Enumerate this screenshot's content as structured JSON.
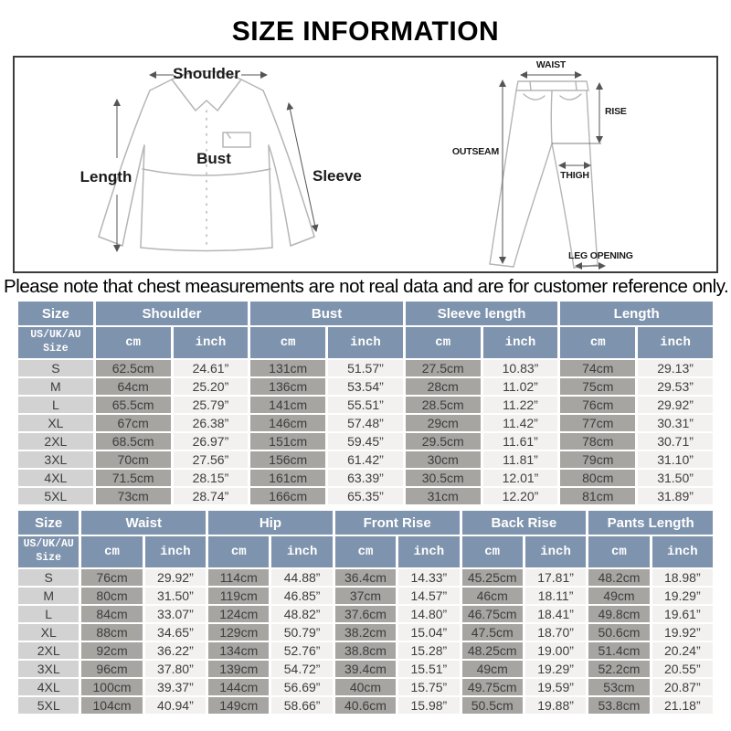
{
  "title": "SIZE INFORMATION",
  "note": {
    "text": "Please note that chest measurements are not real data and are for customer reference only."
  },
  "diagram": {
    "shirt": {
      "shoulder": "Shoulder",
      "length": "Length",
      "bust": "Bust",
      "sleeve": "Sleeve"
    },
    "pants": {
      "waist": "WAIST",
      "rise": "RISE",
      "outseam": "OUTSEAM",
      "thigh": "THIGH",
      "leg_opening": "LEG OPENING"
    }
  },
  "colors": {
    "header": "#7e93ad",
    "size_col": "#d2d2d2",
    "cm_col": "#a7a5a2",
    "inch_col": "#f2f1ef"
  },
  "tables": [
    {
      "name": "tops-size-table",
      "corner": "Size",
      "sub_corner": "US/UK/AU\nSize",
      "groups": [
        "Shoulder",
        "Bust",
        "Sleeve length",
        "Length"
      ],
      "units": [
        "cm",
        "inch"
      ],
      "rows": [
        {
          "size": "S",
          "values": [
            "62.5cm",
            "24.61”",
            "131cm",
            "51.57”",
            "27.5cm",
            "10.83”",
            "74cm",
            "29.13”"
          ]
        },
        {
          "size": "M",
          "values": [
            "64cm",
            "25.20”",
            "136cm",
            "53.54”",
            "28cm",
            "11.02”",
            "75cm",
            "29.53”"
          ]
        },
        {
          "size": "L",
          "values": [
            "65.5cm",
            "25.79”",
            "141cm",
            "55.51”",
            "28.5cm",
            "11.22”",
            "76cm",
            "29.92”"
          ]
        },
        {
          "size": "XL",
          "values": [
            "67cm",
            "26.38”",
            "146cm",
            "57.48”",
            "29cm",
            "11.42”",
            "77cm",
            "30.31”"
          ]
        },
        {
          "size": "2XL",
          "values": [
            "68.5cm",
            "26.97”",
            "151cm",
            "59.45”",
            "29.5cm",
            "11.61”",
            "78cm",
            "30.71”"
          ]
        },
        {
          "size": "3XL",
          "values": [
            "70cm",
            "27.56”",
            "156cm",
            "61.42”",
            "30cm",
            "11.81”",
            "79cm",
            "31.10”"
          ]
        },
        {
          "size": "4XL",
          "values": [
            "71.5cm",
            "28.15”",
            "161cm",
            "63.39”",
            "30.5cm",
            "12.01”",
            "80cm",
            "31.50”"
          ]
        },
        {
          "size": "5XL",
          "values": [
            "73cm",
            "28.74”",
            "166cm",
            "65.35”",
            "31cm",
            "12.20”",
            "81cm",
            "31.89”"
          ]
        }
      ]
    },
    {
      "name": "bottoms-size-table",
      "corner": "Size",
      "sub_corner": "US/UK/AU\nSize",
      "groups": [
        "Waist",
        "Hip",
        "Front Rise",
        "Back Rise",
        "Pants Length"
      ],
      "units": [
        "cm",
        "inch"
      ],
      "rows": [
        {
          "size": "S",
          "values": [
            "76cm",
            "29.92”",
            "114cm",
            "44.88”",
            "36.4cm",
            "14.33”",
            "45.25cm",
            "17.81”",
            "48.2cm",
            "18.98”"
          ]
        },
        {
          "size": "M",
          "values": [
            "80cm",
            "31.50”",
            "119cm",
            "46.85”",
            "37cm",
            "14.57”",
            "46cm",
            "18.11”",
            "49cm",
            "19.29”"
          ]
        },
        {
          "size": "L",
          "values": [
            "84cm",
            "33.07”",
            "124cm",
            "48.82”",
            "37.6cm",
            "14.80”",
            "46.75cm",
            "18.41”",
            "49.8cm",
            "19.61”"
          ]
        },
        {
          "size": "XL",
          "values": [
            "88cm",
            "34.65”",
            "129cm",
            "50.79”",
            "38.2cm",
            "15.04”",
            "47.5cm",
            "18.70”",
            "50.6cm",
            "19.92”"
          ]
        },
        {
          "size": "2XL",
          "values": [
            "92cm",
            "36.22”",
            "134cm",
            "52.76”",
            "38.8cm",
            "15.28”",
            "48.25cm",
            "19.00”",
            "51.4cm",
            "20.24”"
          ]
        },
        {
          "size": "3XL",
          "values": [
            "96cm",
            "37.80”",
            "139cm",
            "54.72”",
            "39.4cm",
            "15.51”",
            "49cm",
            "19.29”",
            "52.2cm",
            "20.55”"
          ]
        },
        {
          "size": "4XL",
          "values": [
            "100cm",
            "39.37”",
            "144cm",
            "56.69”",
            "40cm",
            "15.75”",
            "49.75cm",
            "19.59”",
            "53cm",
            "20.87”"
          ]
        },
        {
          "size": "5XL",
          "values": [
            "104cm",
            "40.94”",
            "149cm",
            "58.66”",
            "40.6cm",
            "15.98”",
            "50.5cm",
            "19.88”",
            "53.8cm",
            "21.18”"
          ]
        }
      ]
    }
  ]
}
